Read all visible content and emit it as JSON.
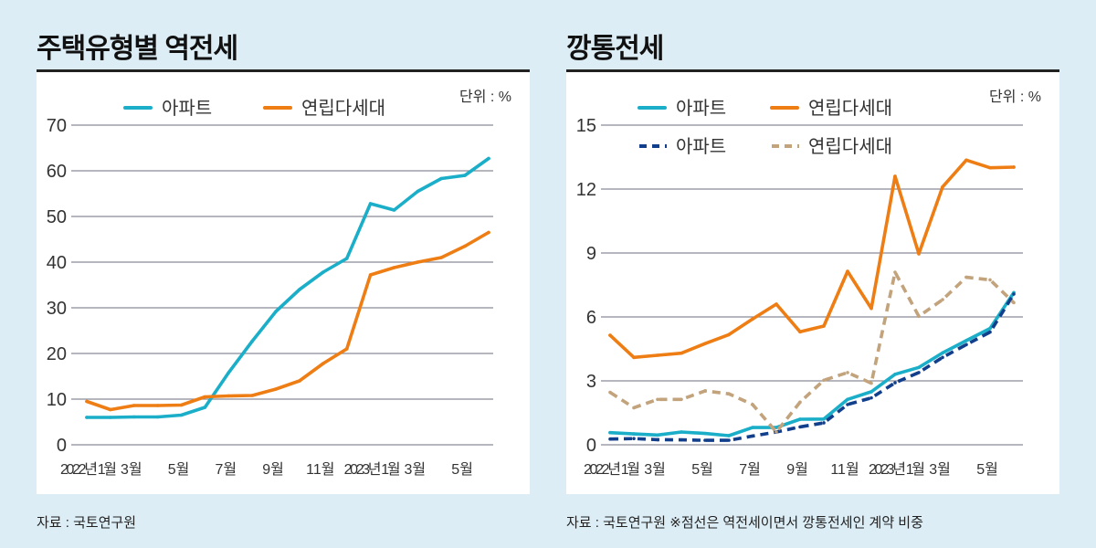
{
  "colors": {
    "apt": "#1aaec8",
    "villa": "#ee7d14",
    "apt_dashed": "#123f8c",
    "villa_dashed": "#c2a37c",
    "grid": "#8a8a96",
    "background": "#dcedf5"
  },
  "chart_data": [
    {
      "type": "line",
      "title": "주택유형별 역전세",
      "unit_label": "단위 : %",
      "xlabel": "",
      "ylabel": "",
      "ylim": [
        0,
        70
      ],
      "yticks": [
        0,
        10,
        20,
        30,
        40,
        50,
        60,
        70
      ],
      "grid": true,
      "legend": "top",
      "x": [
        "2022-01",
        "2022-02",
        "2022-03",
        "2022-04",
        "2022-05",
        "2022-06",
        "2022-07",
        "2022-08",
        "2022-09",
        "2022-10",
        "2022-11",
        "2022-12",
        "2023-01",
        "2023-02",
        "2023-03",
        "2023-04",
        "2023-05",
        "2023-06"
      ],
      "xtick_labels": [
        "2022년 1월",
        "3월",
        "5월",
        "7월",
        "9월",
        "11월",
        "2023년 1월",
        "3월",
        "5월"
      ],
      "series": [
        {
          "name": "아파트",
          "style": "solid",
          "color": "#1aaec8",
          "values": [
            6.0,
            6.0,
            6.1,
            6.1,
            6.5,
            8.2,
            15.8,
            22.7,
            29.2,
            34.0,
            37.8,
            40.8,
            52.8,
            51.4,
            55.5,
            58.3,
            59.0,
            62.7
          ]
        },
        {
          "name": "연립다세대",
          "style": "solid",
          "color": "#ee7d14",
          "values": [
            9.5,
            7.7,
            8.6,
            8.6,
            8.7,
            10.5,
            10.7,
            10.8,
            12.2,
            14.0,
            17.8,
            21.0,
            37.2,
            38.8,
            40.0,
            41.0,
            43.5,
            46.5
          ]
        }
      ],
      "source": "자료 : 국토연구원"
    },
    {
      "type": "line",
      "title": "깡통전세",
      "unit_label": "단위 : %",
      "xlabel": "",
      "ylabel": "",
      "ylim": [
        0,
        15
      ],
      "yticks": [
        0,
        3,
        6,
        9,
        12,
        15
      ],
      "grid": true,
      "legend": "top",
      "x": [
        "2022-01",
        "2022-02",
        "2022-03",
        "2022-04",
        "2022-05",
        "2022-06",
        "2022-07",
        "2022-08",
        "2022-09",
        "2022-10",
        "2022-11",
        "2022-12",
        "2023-01",
        "2023-02",
        "2023-03",
        "2023-04",
        "2023-05",
        "2023-06"
      ],
      "xtick_labels": [
        "2022년 1월",
        "3월",
        "5월",
        "7월",
        "9월",
        "11월",
        "2023년 1월",
        "3월",
        "5월"
      ],
      "series": [
        {
          "name": "아파트",
          "style": "solid",
          "color": "#1aaec8",
          "values": [
            0.57,
            0.51,
            0.46,
            0.6,
            0.53,
            0.43,
            0.81,
            0.81,
            1.2,
            1.21,
            2.13,
            2.49,
            3.31,
            3.63,
            4.31,
            4.89,
            5.46,
            7.14
          ]
        },
        {
          "name": "연립다세대",
          "style": "solid",
          "color": "#ee7d14",
          "values": [
            5.14,
            4.1,
            4.2,
            4.3,
            4.75,
            5.17,
            5.9,
            6.6,
            5.3,
            5.57,
            8.14,
            6.4,
            12.6,
            8.96,
            12.1,
            13.36,
            13.0,
            13.03
          ]
        },
        {
          "name": "아파트",
          "style": "dashed",
          "color": "#123f8c",
          "values": [
            0.27,
            0.29,
            0.24,
            0.23,
            0.21,
            0.21,
            0.41,
            0.6,
            0.84,
            1.03,
            1.89,
            2.2,
            2.91,
            3.39,
            4.1,
            4.7,
            5.29,
            7.07
          ]
        },
        {
          "name": "연립다세대",
          "style": "dashed",
          "color": "#c2a37c",
          "values": [
            2.46,
            1.74,
            2.13,
            2.13,
            2.53,
            2.39,
            1.89,
            0.6,
            2.0,
            3.03,
            3.39,
            2.89,
            8.1,
            6.03,
            6.81,
            7.86,
            7.74,
            6.67
          ]
        }
      ],
      "source": "자료 : 국토연구원 ※점선은 역전세이면서 깡통전세인 계약 비중"
    }
  ]
}
